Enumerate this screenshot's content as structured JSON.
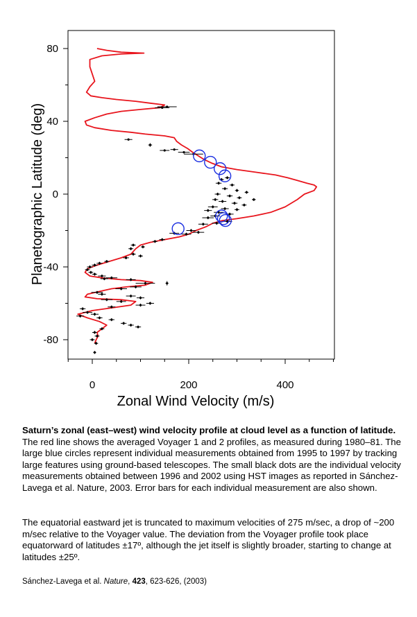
{
  "chart_data": {
    "type": "scatter",
    "xlabel": "Zonal Wind Velocity (m/s)",
    "ylabel": "Planetographic Latitude (deg)",
    "xlim": [
      -50,
      500
    ],
    "ylim": [
      -90,
      90
    ],
    "x_ticks": [
      0,
      200,
      400
    ],
    "y_ticks": [
      80,
      40,
      0,
      -40,
      -80
    ],
    "grid": false,
    "colors": {
      "line": "#e8141c",
      "circles": "#1a2ee0",
      "dots": "#000000"
    },
    "voyager_profile": {
      "points": [
        [
          10,
          80
        ],
        [
          30,
          79
        ],
        [
          60,
          78
        ],
        [
          107,
          77.5
        ],
        [
          60,
          77
        ],
        [
          20,
          76
        ],
        [
          -5,
          74
        ],
        [
          -5,
          70
        ],
        [
          0,
          66
        ],
        [
          5,
          62
        ],
        [
          -5,
          59
        ],
        [
          -12,
          56
        ],
        [
          -3,
          54
        ],
        [
          20,
          53
        ],
        [
          50,
          52
        ],
        [
          90,
          51
        ],
        [
          120,
          50
        ],
        [
          150,
          49
        ],
        [
          140,
          47.5
        ],
        [
          100,
          46.5
        ],
        [
          60,
          45.5
        ],
        [
          30,
          44
        ],
        [
          5,
          42
        ],
        [
          -15,
          40
        ],
        [
          -12,
          38
        ],
        [
          5,
          36.5
        ],
        [
          40,
          35
        ],
        [
          80,
          34
        ],
        [
          110,
          33
        ],
        [
          150,
          32
        ],
        [
          170,
          31
        ],
        [
          175,
          29
        ],
        [
          185,
          27
        ],
        [
          198,
          25
        ],
        [
          208,
          23
        ],
        [
          220,
          21
        ],
        [
          232,
          19
        ],
        [
          248,
          17
        ],
        [
          268,
          15
        ],
        [
          300,
          13.5
        ],
        [
          340,
          12
        ],
        [
          380,
          10.5
        ],
        [
          405,
          9
        ],
        [
          425,
          7.5
        ],
        [
          445,
          6
        ],
        [
          460,
          5
        ],
        [
          465,
          4
        ],
        [
          460,
          2
        ],
        [
          440,
          0
        ],
        [
          425,
          -3
        ],
        [
          400,
          -7
        ],
        [
          370,
          -10
        ],
        [
          335,
          -12
        ],
        [
          300,
          -13.5
        ],
        [
          270,
          -14.5
        ],
        [
          250,
          -16
        ],
        [
          235,
          -18
        ],
        [
          215,
          -20
        ],
        [
          200,
          -22
        ],
        [
          180,
          -23.5
        ],
        [
          150,
          -25
        ],
        [
          120,
          -26.5
        ],
        [
          100,
          -28
        ],
        [
          90,
          -30
        ],
        [
          80,
          -33
        ],
        [
          60,
          -35
        ],
        [
          35,
          -37
        ],
        [
          10,
          -39
        ],
        [
          -10,
          -41
        ],
        [
          -15,
          -43
        ],
        [
          -5,
          -45
        ],
        [
          20,
          -46
        ],
        [
          60,
          -47
        ],
        [
          100,
          -47.5
        ],
        [
          125,
          -48.5
        ],
        [
          110,
          -50
        ],
        [
          70,
          -51
        ],
        [
          40,
          -52
        ],
        [
          15,
          -53.5
        ],
        [
          -10,
          -55
        ],
        [
          -15,
          -56.5
        ],
        [
          10,
          -57.5
        ],
        [
          60,
          -58
        ],
        [
          90,
          -59
        ],
        [
          80,
          -61
        ],
        [
          40,
          -62.5
        ],
        [
          0,
          -64
        ],
        [
          -30,
          -66
        ],
        [
          -10,
          -68
        ],
        [
          15,
          -70
        ],
        [
          30,
          -72
        ],
        [
          20,
          -74
        ],
        [
          10,
          -76
        ],
        [
          12,
          -78
        ],
        [
          8,
          -80
        ],
        [
          5,
          -82
        ]
      ]
    },
    "ground_based_circles": [
      {
        "x": 222,
        "y": 21
      },
      {
        "x": 245,
        "y": 17.5
      },
      {
        "x": 265,
        "y": 14
      },
      {
        "x": 275,
        "y": 10
      },
      {
        "x": 178,
        "y": -19
      },
      {
        "x": 268,
        "y": -12
      },
      {
        "x": 272,
        "y": -13.5
      },
      {
        "x": 276,
        "y": -14.5
      }
    ],
    "hst_measurements": [
      {
        "x": 155,
        "y": 48,
        "ex": 20,
        "ey": 0.6
      },
      {
        "x": 145,
        "y": 47.5,
        "ex": 15,
        "ey": 0.6
      },
      {
        "x": 75,
        "y": 30,
        "ex": 8,
        "ey": 0.6
      },
      {
        "x": 120,
        "y": 27,
        "ex": 4,
        "ey": 1.0
      },
      {
        "x": 150,
        "y": 24,
        "ex": 10,
        "ey": 0.6
      },
      {
        "x": 170,
        "y": 24.5,
        "ex": 8,
        "ey": 0.6
      },
      {
        "x": 190,
        "y": 23,
        "ex": 12,
        "ey": 0.6
      },
      {
        "x": 210,
        "y": 22,
        "ex": 20,
        "ey": 0.6
      },
      {
        "x": 268,
        "y": 8,
        "ex": 5,
        "ey": 0.8
      },
      {
        "x": 280,
        "y": 9,
        "ex": 5,
        "ey": 0.8
      },
      {
        "x": 262,
        "y": 6,
        "ex": 6,
        "ey": 0.8
      },
      {
        "x": 290,
        "y": 5,
        "ex": 5,
        "ey": 0.8
      },
      {
        "x": 275,
        "y": 3,
        "ex": 6,
        "ey": 0.8
      },
      {
        "x": 300,
        "y": 2,
        "ex": 4,
        "ey": 0.8
      },
      {
        "x": 320,
        "y": 1,
        "ex": 4,
        "ey": 0.8
      },
      {
        "x": 260,
        "y": 0,
        "ex": 6,
        "ey": 0.8
      },
      {
        "x": 285,
        "y": -1,
        "ex": 6,
        "ey": 0.8
      },
      {
        "x": 305,
        "y": -2,
        "ex": 5,
        "ey": 0.8
      },
      {
        "x": 335,
        "y": -3,
        "ex": 4,
        "ey": 0.8
      },
      {
        "x": 255,
        "y": -3,
        "ex": 6,
        "ey": 0.8
      },
      {
        "x": 270,
        "y": -4,
        "ex": 8,
        "ey": 0.8
      },
      {
        "x": 295,
        "y": -5,
        "ex": 6,
        "ey": 0.8
      },
      {
        "x": 315,
        "y": -6,
        "ex": 5,
        "ey": 0.8
      },
      {
        "x": 250,
        "y": -7,
        "ex": 10,
        "ey": 0.8
      },
      {
        "x": 275,
        "y": -8,
        "ex": 8,
        "ey": 0.8
      },
      {
        "x": 300,
        "y": -8.5,
        "ex": 5,
        "ey": 0.8
      },
      {
        "x": 240,
        "y": -9,
        "ex": 8,
        "ey": 0.8
      },
      {
        "x": 262,
        "y": -10,
        "ex": 10,
        "ey": 0.8
      },
      {
        "x": 285,
        "y": -11,
        "ex": 8,
        "ey": 0.8
      },
      {
        "x": 255,
        "y": -12,
        "ex": 10,
        "ey": 0.8
      },
      {
        "x": 240,
        "y": -13,
        "ex": 12,
        "ey": 0.8
      },
      {
        "x": 280,
        "y": -15,
        "ex": 10,
        "ey": 0.8
      },
      {
        "x": 258,
        "y": -16,
        "ex": 10,
        "ey": 0.8
      },
      {
        "x": 230,
        "y": -16.5,
        "ex": 10,
        "ey": 0.8
      },
      {
        "x": 205,
        "y": -20,
        "ex": 10,
        "ey": 0.8
      },
      {
        "x": 220,
        "y": -21,
        "ex": 12,
        "ey": 0.8
      },
      {
        "x": 195,
        "y": -22,
        "ex": 10,
        "ey": 0.8
      },
      {
        "x": 170,
        "y": -21.5,
        "ex": 10,
        "ey": 0.8
      },
      {
        "x": 145,
        "y": -25,
        "ex": 6,
        "ey": 0.8
      },
      {
        "x": 130,
        "y": -26,
        "ex": 5,
        "ey": 0.8
      },
      {
        "x": 85,
        "y": -28,
        "ex": 5,
        "ey": 0.8
      },
      {
        "x": 80,
        "y": -30,
        "ex": 5,
        "ey": 0.8
      },
      {
        "x": 105,
        "y": -29,
        "ex": 4,
        "ey": 0.8
      },
      {
        "x": 85,
        "y": -33,
        "ex": 5,
        "ey": 0.8
      },
      {
        "x": 100,
        "y": -34,
        "ex": 5,
        "ey": 0.8
      },
      {
        "x": 70,
        "y": -35,
        "ex": 6,
        "ey": 0.8
      },
      {
        "x": 30,
        "y": -37,
        "ex": 5,
        "ey": 0.8
      },
      {
        "x": 15,
        "y": -38,
        "ex": 6,
        "ey": 0.8
      },
      {
        "x": 5,
        "y": -39,
        "ex": 6,
        "ey": 0.8
      },
      {
        "x": -5,
        "y": -40,
        "ex": 6,
        "ey": 0.8
      },
      {
        "x": -10,
        "y": -41.5,
        "ex": 5,
        "ey": 0.8
      },
      {
        "x": -3,
        "y": -43,
        "ex": 5,
        "ey": 0.8
      },
      {
        "x": 5,
        "y": -44,
        "ex": 5,
        "ey": 0.8
      },
      {
        "x": 20,
        "y": -45,
        "ex": 8,
        "ey": 0.8
      },
      {
        "x": 40,
        "y": -46,
        "ex": 12,
        "ey": 0.8
      },
      {
        "x": 25,
        "y": -46.5,
        "ex": 8,
        "ey": 0.8
      },
      {
        "x": 80,
        "y": -47,
        "ex": 10,
        "ey": 0.8
      },
      {
        "x": 110,
        "y": -49,
        "ex": 20,
        "ey": 0.8
      },
      {
        "x": 155,
        "y": -49,
        "ex": 3,
        "ey": 1.2
      },
      {
        "x": 90,
        "y": -51,
        "ex": 12,
        "ey": 0.8
      },
      {
        "x": 60,
        "y": -52,
        "ex": 12,
        "ey": 0.8
      },
      {
        "x": 10,
        "y": -54,
        "ex": 12,
        "ey": 0.8
      },
      {
        "x": 20,
        "y": -55,
        "ex": 8,
        "ey": 0.8
      },
      {
        "x": 80,
        "y": -56,
        "ex": 10,
        "ey": 0.8
      },
      {
        "x": 100,
        "y": -57,
        "ex": 8,
        "ey": 0.8
      },
      {
        "x": 30,
        "y": -58,
        "ex": 12,
        "ey": 0.8
      },
      {
        "x": 60,
        "y": -59,
        "ex": 10,
        "ey": 0.8
      },
      {
        "x": 120,
        "y": -60,
        "ex": 8,
        "ey": 0.8
      },
      {
        "x": 100,
        "y": -61,
        "ex": 10,
        "ey": 0.8
      },
      {
        "x": 40,
        "y": -62,
        "ex": 8,
        "ey": 0.8
      },
      {
        "x": -20,
        "y": -63,
        "ex": 6,
        "ey": 0.8
      },
      {
        "x": -10,
        "y": -65,
        "ex": 10,
        "ey": 0.8
      },
      {
        "x": 5,
        "y": -66,
        "ex": 8,
        "ey": 0.8
      },
      {
        "x": -25,
        "y": -67,
        "ex": 8,
        "ey": 0.8
      },
      {
        "x": 15,
        "y": -68,
        "ex": 6,
        "ey": 0.8
      },
      {
        "x": 40,
        "y": -69,
        "ex": 6,
        "ey": 0.8
      },
      {
        "x": 65,
        "y": -71,
        "ex": 6,
        "ey": 0.8
      },
      {
        "x": 80,
        "y": -72,
        "ex": 6,
        "ey": 0.8
      },
      {
        "x": 95,
        "y": -73,
        "ex": 6,
        "ey": 0.8
      },
      {
        "x": 20,
        "y": -74,
        "ex": 5,
        "ey": 0.8
      },
      {
        "x": 5,
        "y": -76,
        "ex": 5,
        "ey": 0.8
      },
      {
        "x": 10,
        "y": -78,
        "ex": 5,
        "ey": 0.8
      },
      {
        "x": 0,
        "y": -80,
        "ex": 5,
        "ey": 0.8
      },
      {
        "x": 8,
        "y": -82,
        "ex": 4,
        "ey": 0.8
      },
      {
        "x": 5,
        "y": -87,
        "ex": 3,
        "ey": 0.8
      }
    ]
  },
  "caption": {
    "bold_intro": "Saturn’s zonal (east–west) wind velocity profile at cloud level as a function of latitude.",
    "body": " The red line shows the averaged Voyager 1 and 2 profiles, as measured during 1980–81. The large blue circles represent individual measurements obtained from 1995 to 1997 by tracking large features using ground-based telescopes. The small black dots are the individual velocity measurements obtained between 1996 and 2002 using HST images as reported in Sánchez-Lavega et al. Nature, 2003. Error bars for each individual measurement are also shown.",
    "paragraph2": "The equatorial eastward jet is truncated to maximum velocities of 275 m/sec, a drop of ~200 m/sec relative to the Voyager value. The deviation from the Voyager profile took place equatorward of latitudes ±17º, although the jet  itself is slightly broader, starting to change at latitudes ±25º."
  },
  "citation": {
    "authors": "Sánchez-Lavega et al. ",
    "journal": "Nature",
    "sep1": ", ",
    "volume": "423",
    "pages": ", 623-626, (2003)"
  }
}
